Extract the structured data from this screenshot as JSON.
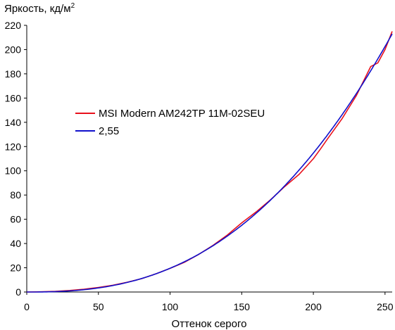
{
  "chart_data": {
    "type": "line",
    "ylabel": "Яркость, кд/м",
    "ylabel_sup": "2",
    "xlabel": "Оттенок серого",
    "xlim": [
      0,
      255
    ],
    "ylim": [
      0,
      220
    ],
    "xticks": [
      0,
      50,
      100,
      150,
      200,
      250
    ],
    "yticks": [
      0,
      20,
      40,
      60,
      80,
      100,
      120,
      140,
      160,
      180,
      200,
      220
    ],
    "grid": false,
    "legend_position": "middle-left",
    "series": [
      {
        "name": "MSI Modern AM242TP 11M-02SEU",
        "color": "#e8101b",
        "x": [
          0,
          10,
          20,
          30,
          40,
          50,
          60,
          70,
          80,
          90,
          100,
          110,
          120,
          130,
          140,
          150,
          160,
          170,
          180,
          190,
          200,
          205,
          210,
          220,
          230,
          235,
          240,
          245,
          250,
          255
        ],
        "y": [
          0,
          0.2,
          0.6,
          1.3,
          2.3,
          3.8,
          5.6,
          8.0,
          11.0,
          15.0,
          19.5,
          24.5,
          31.0,
          38.5,
          47.0,
          57.0,
          66.0,
          76.0,
          87.0,
          97.0,
          110.0,
          118.0,
          126.5,
          143.0,
          162.0,
          174.0,
          186.0,
          189.0,
          200.0,
          215.0
        ]
      },
      {
        "name": "2,55",
        "color": "#1010cc",
        "gamma": 2.55,
        "max": 213
      }
    ]
  }
}
